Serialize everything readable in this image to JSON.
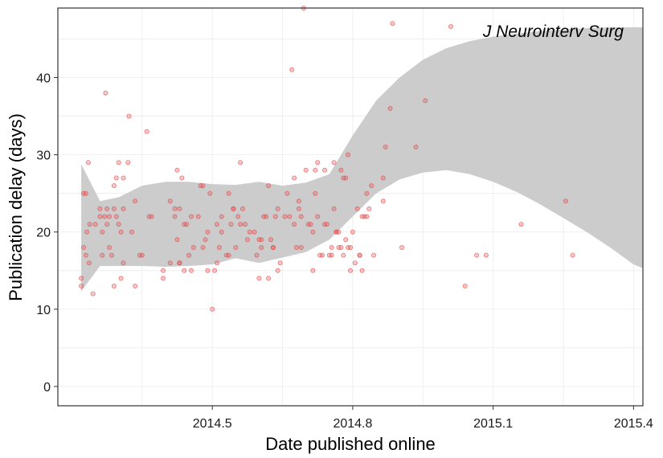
{
  "chart_data": {
    "type": "scatter",
    "title": "",
    "xlabel": "Date published online",
    "ylabel": "Publication delay (days)",
    "xlim": [
      2014.17,
      2015.42
    ],
    "ylim": [
      -2.5,
      49
    ],
    "x_ticks": [
      2014.5,
      2014.8,
      2015.1,
      2015.4
    ],
    "x_tick_labels": [
      "2014.5",
      "2014.8",
      "2015.1",
      "2015.4"
    ],
    "y_ticks": [
      0,
      10,
      20,
      30,
      40
    ],
    "y_tick_labels": [
      "0",
      "10",
      "20",
      "30",
      "40"
    ],
    "grid": true,
    "legend_position": "top-right",
    "colors": {
      "points": "#e8494a",
      "band": "#cccccc",
      "grid": "#ebebeb",
      "border": "#333333"
    },
    "series": [
      {
        "name": "J Neurointerv Surg",
        "points": [
          [
            2014.22,
            13
          ],
          [
            2014.22,
            14
          ],
          [
            2014.225,
            25
          ],
          [
            2014.225,
            18
          ],
          [
            2014.23,
            25
          ],
          [
            2014.23,
            17
          ],
          [
            2014.232,
            20
          ],
          [
            2014.235,
            29
          ],
          [
            2014.237,
            16
          ],
          [
            2014.238,
            21
          ],
          [
            2014.245,
            12
          ],
          [
            2014.25,
            21
          ],
          [
            2014.26,
            23
          ],
          [
            2014.26,
            22
          ],
          [
            2014.265,
            17
          ],
          [
            2014.265,
            20
          ],
          [
            2014.27,
            22
          ],
          [
            2014.272,
            38
          ],
          [
            2014.275,
            21
          ],
          [
            2014.275,
            23
          ],
          [
            2014.28,
            22
          ],
          [
            2014.28,
            18
          ],
          [
            2014.285,
            17
          ],
          [
            2014.29,
            26
          ],
          [
            2014.29,
            23
          ],
          [
            2014.29,
            13
          ],
          [
            2014.295,
            27
          ],
          [
            2014.295,
            22
          ],
          [
            2014.3,
            29
          ],
          [
            2014.3,
            21
          ],
          [
            2014.305,
            20
          ],
          [
            2014.305,
            14
          ],
          [
            2014.31,
            16
          ],
          [
            2014.31,
            27
          ],
          [
            2014.31,
            23
          ],
          [
            2014.32,
            29
          ],
          [
            2014.322,
            35
          ],
          [
            2014.328,
            20
          ],
          [
            2014.335,
            24
          ],
          [
            2014.335,
            13
          ],
          [
            2014.345,
            17
          ],
          [
            2014.35,
            17
          ],
          [
            2014.36,
            33
          ],
          [
            2014.365,
            22
          ],
          [
            2014.37,
            22
          ],
          [
            2014.395,
            15
          ],
          [
            2014.395,
            14
          ],
          [
            2014.41,
            24
          ],
          [
            2014.41,
            16
          ],
          [
            2014.42,
            22
          ],
          [
            2014.42,
            23
          ],
          [
            2014.425,
            19
          ],
          [
            2014.425,
            28
          ],
          [
            2014.43,
            16
          ],
          [
            2014.43,
            16
          ],
          [
            2014.43,
            23
          ],
          [
            2014.435,
            27
          ],
          [
            2014.44,
            21
          ],
          [
            2014.44,
            15
          ],
          [
            2014.445,
            21
          ],
          [
            2014.45,
            17
          ],
          [
            2014.455,
            22
          ],
          [
            2014.455,
            15
          ],
          [
            2014.46,
            18
          ],
          [
            2014.47,
            22
          ],
          [
            2014.475,
            26
          ],
          [
            2014.48,
            26
          ],
          [
            2014.48,
            18
          ],
          [
            2014.485,
            19
          ],
          [
            2014.49,
            15
          ],
          [
            2014.49,
            20
          ],
          [
            2014.495,
            25
          ],
          [
            2014.5,
            10
          ],
          [
            2014.505,
            15
          ],
          [
            2014.51,
            21
          ],
          [
            2014.51,
            16
          ],
          [
            2014.515,
            18
          ],
          [
            2014.52,
            20
          ],
          [
            2014.52,
            22
          ],
          [
            2014.53,
            17
          ],
          [
            2014.535,
            17
          ],
          [
            2014.535,
            25
          ],
          [
            2014.54,
            21
          ],
          [
            2014.545,
            23
          ],
          [
            2014.545,
            23
          ],
          [
            2014.55,
            18
          ],
          [
            2014.555,
            22
          ],
          [
            2014.56,
            29
          ],
          [
            2014.56,
            21
          ],
          [
            2014.565,
            23
          ],
          [
            2014.57,
            21
          ],
          [
            2014.575,
            19
          ],
          [
            2014.58,
            20
          ],
          [
            2014.59,
            20
          ],
          [
            2014.595,
            17
          ],
          [
            2014.6,
            14
          ],
          [
            2014.6,
            19
          ],
          [
            2014.605,
            18
          ],
          [
            2014.605,
            19
          ],
          [
            2014.61,
            22
          ],
          [
            2014.615,
            22
          ],
          [
            2014.62,
            14
          ],
          [
            2014.62,
            26
          ],
          [
            2014.625,
            19
          ],
          [
            2014.63,
            18
          ],
          [
            2014.63,
            18
          ],
          [
            2014.635,
            22
          ],
          [
            2014.64,
            23
          ],
          [
            2014.64,
            15
          ],
          [
            2014.645,
            16
          ],
          [
            2014.655,
            22
          ],
          [
            2014.66,
            25
          ],
          [
            2014.665,
            22
          ],
          [
            2014.67,
            41
          ],
          [
            2014.675,
            27
          ],
          [
            2014.675,
            21
          ],
          [
            2014.68,
            18
          ],
          [
            2014.685,
            23
          ],
          [
            2014.685,
            24
          ],
          [
            2014.69,
            22
          ],
          [
            2014.69,
            18
          ],
          [
            2014.695,
            49
          ],
          [
            2014.7,
            28
          ],
          [
            2014.705,
            21
          ],
          [
            2014.71,
            21
          ],
          [
            2014.715,
            15
          ],
          [
            2014.715,
            20
          ],
          [
            2014.72,
            25
          ],
          [
            2014.72,
            28
          ],
          [
            2014.725,
            29
          ],
          [
            2014.725,
            22
          ],
          [
            2014.73,
            17
          ],
          [
            2014.735,
            17
          ],
          [
            2014.74,
            21
          ],
          [
            2014.74,
            28
          ],
          [
            2014.745,
            21
          ],
          [
            2014.75,
            17
          ],
          [
            2014.755,
            18
          ],
          [
            2014.755,
            17
          ],
          [
            2014.76,
            23
          ],
          [
            2014.76,
            29
          ],
          [
            2014.765,
            20
          ],
          [
            2014.765,
            20
          ],
          [
            2014.77,
            18
          ],
          [
            2014.77,
            20
          ],
          [
            2014.775,
            28
          ],
          [
            2014.775,
            18
          ],
          [
            2014.78,
            17
          ],
          [
            2014.78,
            27
          ],
          [
            2014.785,
            19
          ],
          [
            2014.785,
            27
          ],
          [
            2014.79,
            18
          ],
          [
            2014.79,
            30
          ],
          [
            2014.795,
            18
          ],
          [
            2014.795,
            15
          ],
          [
            2014.8,
            20
          ],
          [
            2014.805,
            16
          ],
          [
            2014.81,
            23
          ],
          [
            2014.815,
            17
          ],
          [
            2014.815,
            17
          ],
          [
            2014.82,
            15
          ],
          [
            2014.82,
            22
          ],
          [
            2014.825,
            22
          ],
          [
            2014.83,
            25
          ],
          [
            2014.83,
            22
          ],
          [
            2014.835,
            23
          ],
          [
            2014.84,
            26
          ],
          [
            2014.845,
            17
          ],
          [
            2014.865,
            24
          ],
          [
            2014.865,
            27
          ],
          [
            2014.87,
            31
          ],
          [
            2014.88,
            36
          ],
          [
            2014.885,
            47
          ],
          [
            2014.905,
            18
          ],
          [
            2014.935,
            31
          ],
          [
            2014.955,
            37
          ],
          [
            2015.04,
            13
          ],
          [
            2015.065,
            17
          ],
          [
            2015.085,
            17
          ],
          [
            2015.16,
            21
          ],
          [
            2015.255,
            24
          ],
          [
            2015.27,
            17
          ]
        ]
      }
    ],
    "smooth_band": {
      "x": [
        2014.22,
        2014.26,
        2014.3,
        2014.35,
        2014.4,
        2014.45,
        2014.5,
        2014.55,
        2014.6,
        2014.65,
        2014.7,
        2014.75,
        2014.8,
        2014.85,
        2014.9,
        2014.95,
        2015.0,
        2015.05,
        2015.1,
        2015.15,
        2015.2,
        2015.25,
        2015.3,
        2015.35,
        2015.4,
        2015.42
      ],
      "upper": [
        28.8,
        24.0,
        24.5,
        26.0,
        26.5,
        26.5,
        26.2,
        26.1,
        26.5,
        26.0,
        26.4,
        27.5,
        32.5,
        37.0,
        40.0,
        42.3,
        43.8,
        44.7,
        45.3,
        45.7,
        46.0,
        46.2,
        46.4,
        46.5,
        46.5,
        46.5
      ],
      "lower": [
        12.3,
        15.6,
        15.6,
        15.6,
        15.5,
        15.6,
        15.8,
        16.6,
        16.0,
        16.7,
        17.4,
        19.0,
        22.0,
        25.0,
        26.8,
        27.7,
        28.0,
        27.5,
        26.5,
        25.2,
        23.6,
        21.8,
        20.0,
        18.0,
        15.8,
        15.3
      ]
    },
    "legend": [
      "J Neurointerv Surg"
    ]
  }
}
